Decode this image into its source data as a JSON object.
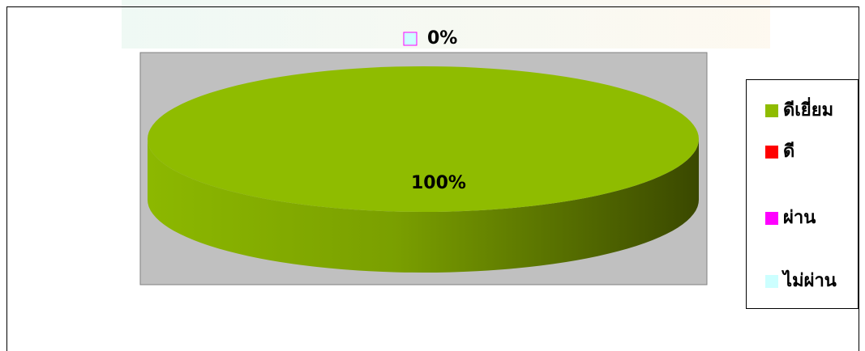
{
  "chart_data": {
    "type": "pie",
    "style": "3d",
    "categories": [
      "ดีเยี่ยม",
      "ดี",
      "ผ่าน",
      "ไม่ผ่าน"
    ],
    "values": [
      100,
      0,
      0,
      0
    ],
    "value_labels": [
      "100%",
      null,
      null,
      "0%"
    ],
    "colors": [
      "#8fbc00",
      "#ff0000",
      "#ff00ff",
      "#ccffff"
    ],
    "legend": "right"
  }
}
